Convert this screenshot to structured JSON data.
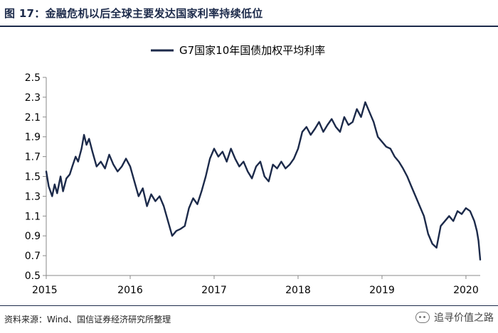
{
  "header": {
    "title": "图 17：金融危机以后全球主要发达国家利率持续低位"
  },
  "footer": {
    "source": "资料来源：Wind、国信证券经济研究所整理",
    "watermark": "追寻价值之路",
    "watermark_icon": "wechat-icon"
  },
  "colors": {
    "series": "#1c2a4a",
    "title": "#1c2a4a"
  },
  "chart_data": {
    "type": "line",
    "title": "",
    "xlabel": "",
    "ylabel": "",
    "legend_position": "top-center",
    "grid": false,
    "xlim": [
      2015.0,
      2020.17
    ],
    "ylim": [
      0.5,
      2.5
    ],
    "x_ticks": [
      "2015",
      "2016",
      "2017",
      "2018",
      "2019",
      "2020"
    ],
    "y_ticks": [
      "0.5",
      "0.7",
      "0.9",
      "1.1",
      "1.3",
      "1.5",
      "1.7",
      "1.9",
      "2.1",
      "2.3",
      "2.5"
    ],
    "series": [
      {
        "name": "G7国家10年国债加权平均利率",
        "x": [
          2015.0,
          2015.03,
          2015.07,
          2015.1,
          2015.13,
          2015.17,
          2015.2,
          2015.24,
          2015.28,
          2015.31,
          2015.35,
          2015.38,
          2015.42,
          2015.45,
          2015.48,
          2015.51,
          2015.55,
          2015.6,
          2015.65,
          2015.7,
          2015.75,
          2015.8,
          2015.85,
          2015.9,
          2015.95,
          2016.0,
          2016.05,
          2016.1,
          2016.15,
          2016.2,
          2016.25,
          2016.3,
          2016.35,
          2016.4,
          2016.45,
          2016.5,
          2016.55,
          2016.6,
          2016.65,
          2016.7,
          2016.75,
          2016.8,
          2016.85,
          2016.9,
          2016.95,
          2017.0,
          2017.05,
          2017.1,
          2017.15,
          2017.2,
          2017.25,
          2017.3,
          2017.35,
          2017.4,
          2017.45,
          2017.5,
          2017.55,
          2017.6,
          2017.65,
          2017.7,
          2017.75,
          2017.8,
          2017.85,
          2017.9,
          2017.95,
          2018.0,
          2018.05,
          2018.1,
          2018.15,
          2018.2,
          2018.25,
          2018.3,
          2018.35,
          2018.4,
          2018.45,
          2018.5,
          2018.55,
          2018.6,
          2018.65,
          2018.7,
          2018.75,
          2018.8,
          2018.85,
          2018.9,
          2018.95,
          2019.0,
          2019.05,
          2019.1,
          2019.15,
          2019.2,
          2019.25,
          2019.3,
          2019.35,
          2019.4,
          2019.45,
          2019.5,
          2019.55,
          2019.6,
          2019.65,
          2019.7,
          2019.75,
          2019.8,
          2019.85,
          2019.9,
          2019.95,
          2020.0,
          2020.05,
          2020.1,
          2020.13,
          2020.15,
          2020.17
        ],
        "values": [
          1.55,
          1.4,
          1.3,
          1.42,
          1.33,
          1.5,
          1.35,
          1.48,
          1.52,
          1.6,
          1.7,
          1.65,
          1.78,
          1.92,
          1.82,
          1.88,
          1.75,
          1.6,
          1.65,
          1.58,
          1.72,
          1.62,
          1.55,
          1.6,
          1.68,
          1.6,
          1.45,
          1.3,
          1.38,
          1.2,
          1.32,
          1.25,
          1.3,
          1.2,
          1.05,
          0.9,
          0.95,
          0.97,
          1.0,
          1.18,
          1.28,
          1.22,
          1.35,
          1.5,
          1.68,
          1.78,
          1.7,
          1.75,
          1.65,
          1.78,
          1.68,
          1.6,
          1.65,
          1.55,
          1.48,
          1.6,
          1.65,
          1.5,
          1.45,
          1.62,
          1.58,
          1.65,
          1.58,
          1.62,
          1.68,
          1.78,
          1.95,
          2.0,
          1.92,
          1.98,
          2.05,
          1.95,
          2.02,
          2.08,
          2.0,
          1.95,
          2.1,
          2.02,
          2.05,
          2.18,
          2.1,
          2.25,
          2.15,
          2.05,
          1.9,
          1.85,
          1.8,
          1.78,
          1.7,
          1.65,
          1.58,
          1.5,
          1.4,
          1.3,
          1.2,
          1.1,
          0.92,
          0.82,
          0.78,
          1.0,
          1.05,
          1.1,
          1.05,
          1.15,
          1.12,
          1.18,
          1.15,
          1.05,
          0.95,
          0.85,
          0.66
        ]
      }
    ]
  }
}
